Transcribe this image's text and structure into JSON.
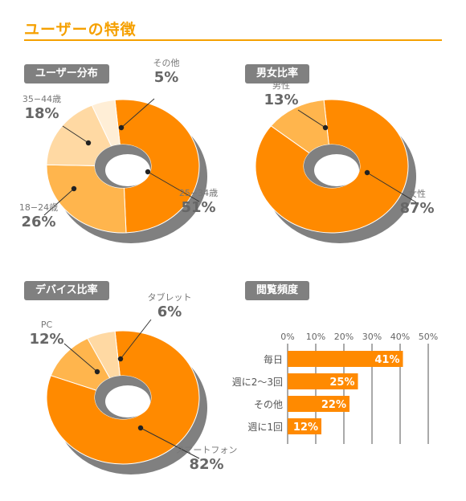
{
  "page": {
    "title": "ユーザーの特徴"
  },
  "colors": {
    "orange": "#ff8a00",
    "light_orange": "#ffb54d",
    "pale_orange": "#ffd9a3",
    "cream": "#ffeed6",
    "gray": "#808080",
    "accent": "#f5a000"
  },
  "chart_data": [
    {
      "type": "pie",
      "title": "ユーザー分布",
      "style": "3D donut",
      "slices": [
        {
          "label": "25−34歳",
          "value": 51,
          "display": "51%"
        },
        {
          "label": "18−24歳",
          "value": 26,
          "display": "26%"
        },
        {
          "label": "35−44歳",
          "value": 18,
          "display": "18%"
        },
        {
          "label": "その他",
          "value": 5,
          "display": "5%"
        }
      ]
    },
    {
      "type": "pie",
      "title": "男女比率",
      "style": "3D donut",
      "slices": [
        {
          "label": "女性",
          "value": 87,
          "display": "87%"
        },
        {
          "label": "男性",
          "value": 13,
          "display": "13%"
        }
      ]
    },
    {
      "type": "pie",
      "title": "デバイス比率",
      "style": "3D donut",
      "slices": [
        {
          "label": "スマートフォン",
          "value": 82,
          "display": "82%"
        },
        {
          "label": "PC",
          "value": 12,
          "display": "12%"
        },
        {
          "label": "タブレット",
          "value": 6,
          "display": "6%"
        }
      ]
    },
    {
      "type": "bar",
      "orientation": "horizontal",
      "title": "閲覧頻度",
      "categories": [
        "毎日",
        "週に2〜3回",
        "その他",
        "週に1回"
      ],
      "values": [
        41,
        25,
        22,
        12
      ],
      "value_labels": [
        "41%",
        "25%",
        "22%",
        "12%"
      ],
      "xlim": [
        0,
        50
      ],
      "xticks": [
        "0%",
        "10%",
        "20%",
        "30%",
        "40%",
        "50%"
      ],
      "grid": true
    }
  ]
}
